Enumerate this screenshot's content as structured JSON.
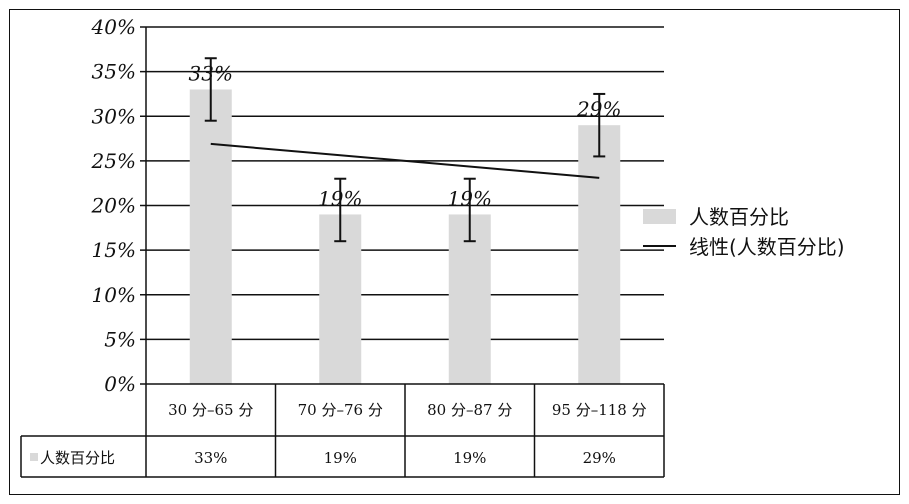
{
  "chart_data": {
    "type": "bar",
    "categories": [
      "30 分–65 分",
      "70 分–76 分",
      "80 分–87 分",
      "95 分–118 分"
    ],
    "series": [
      {
        "name": "人数百分比",
        "values": [
          33,
          19,
          19,
          29
        ],
        "data_labels": [
          "33%",
          "19%",
          "19%",
          "29%"
        ],
        "error_plus": [
          3.5,
          4,
          4,
          3.5
        ],
        "error_minus": [
          3.5,
          3,
          3,
          3.5
        ],
        "color": "#d9d9d9"
      }
    ],
    "trendline": {
      "name": "线性(人数百分比)",
      "start": 26.9,
      "end": 23.1,
      "color": "#111111"
    },
    "ylim": [
      0,
      40
    ],
    "yticks": [
      0,
      5,
      10,
      15,
      20,
      25,
      30,
      35,
      40
    ],
    "ytick_labels": [
      "0%",
      "5%",
      "10%",
      "15%",
      "20%",
      "25%",
      "30%",
      "35%",
      "40%"
    ],
    "grid": true,
    "legend_position": "right",
    "legend": [
      "人数百分比",
      "线性(人数百分比)"
    ],
    "data_table": {
      "row_label": "人数百分比",
      "values": [
        "33%",
        "19%",
        "19%",
        "29%"
      ]
    }
  }
}
